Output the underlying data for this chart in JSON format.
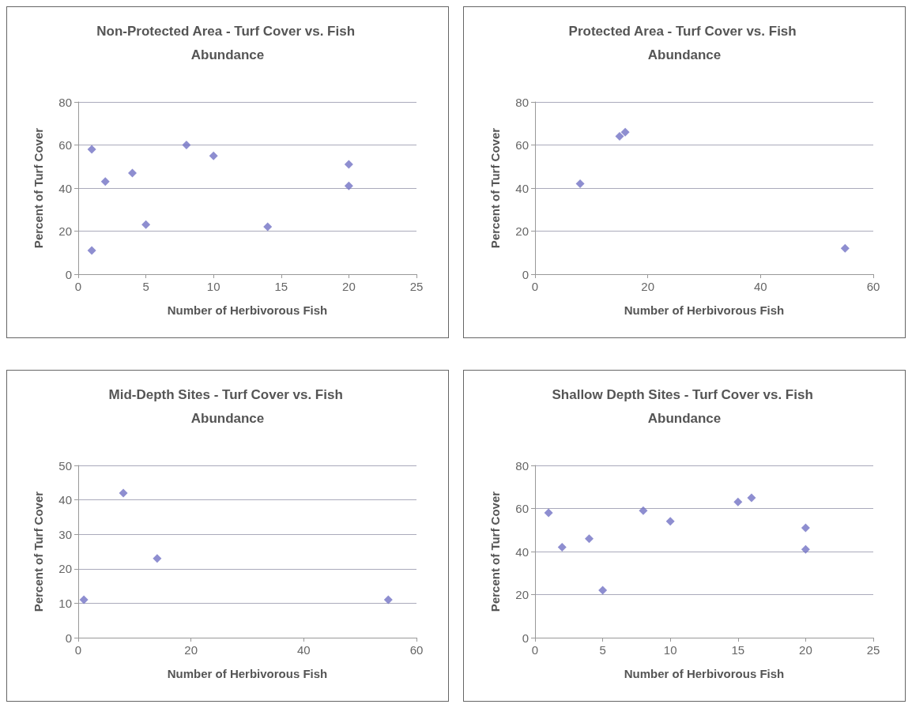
{
  "chart_data": [
    {
      "type": "scatter",
      "title": "Non-Protected Area - Turf Cover vs. Fish Abundance",
      "xlabel": "Number of Herbivorous Fish",
      "ylabel": "Percent of Turf Cover",
      "x": [
        1,
        1,
        2,
        4,
        5,
        8,
        10,
        14,
        20,
        20
      ],
      "values": [
        58,
        11,
        43,
        47,
        23,
        60,
        55,
        22,
        51,
        41
      ],
      "color": "#7272c4",
      "marker": "diamond",
      "xlim": [
        0,
        25
      ],
      "xticks": [
        0,
        5,
        10,
        15,
        20,
        25
      ],
      "ylim": [
        0,
        80
      ],
      "yticks": [
        0,
        20,
        40,
        60,
        80
      ],
      "grid": "y"
    },
    {
      "type": "scatter",
      "title": "Protected Area - Turf Cover vs. Fish Abundance",
      "xlabel": "Number of Herbivorous Fish",
      "ylabel": "Percent of Turf Cover",
      "x": [
        8,
        15,
        16,
        55
      ],
      "values": [
        42,
        64,
        66,
        12
      ],
      "color": "#7272c4",
      "marker": "diamond",
      "xlim": [
        0,
        60
      ],
      "xticks": [
        0,
        20,
        40,
        60
      ],
      "ylim": [
        0,
        80
      ],
      "yticks": [
        0,
        20,
        40,
        60,
        80
      ],
      "grid": "y"
    },
    {
      "type": "scatter",
      "title": "Mid-Depth Sites - Turf Cover vs. Fish Abundance",
      "xlabel": "Number of Herbivorous Fish",
      "ylabel": "Percent of Turf Cover",
      "x": [
        1,
        8,
        14,
        55
      ],
      "values": [
        11,
        42,
        23,
        11
      ],
      "color": "#7272c4",
      "marker": "diamond",
      "xlim": [
        0,
        60
      ],
      "xticks": [
        0,
        20,
        40,
        60
      ],
      "ylim": [
        0,
        50
      ],
      "yticks": [
        0,
        10,
        20,
        30,
        40,
        50
      ],
      "grid": "y"
    },
    {
      "type": "scatter",
      "title": "Shallow Depth Sites - Turf Cover vs. Fish Abundance",
      "xlabel": "Number of Herbivorous Fish",
      "ylabel": "Percent of Turf Cover",
      "x": [
        1,
        2,
        4,
        5,
        8,
        10,
        15,
        16,
        20,
        20
      ],
      "values": [
        58,
        42,
        46,
        22,
        59,
        54,
        63,
        65,
        51,
        41
      ],
      "color": "#7272c4",
      "marker": "diamond",
      "xlim": [
        0,
        25
      ],
      "xticks": [
        0,
        5,
        10,
        15,
        20,
        25
      ],
      "ylim": [
        0,
        80
      ],
      "yticks": [
        0,
        20,
        40,
        60,
        80
      ],
      "grid": "y"
    }
  ]
}
